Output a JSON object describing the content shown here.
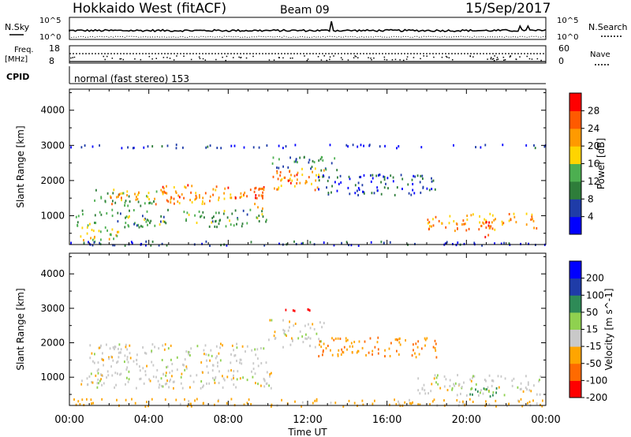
{
  "header": {
    "station": "Hokkaido West (fitACF)",
    "beam": "Beam 09",
    "date": "15/Sep/2017"
  },
  "noise_panel": {
    "left_label": "N.Sky",
    "right_label": "N.Search",
    "left_top_tick": "10^5",
    "left_bottom_tick": "10^0",
    "right_top_tick": "10^5",
    "right_bottom_tick": "10^0"
  },
  "freq_panel": {
    "left_label_1": "Freq.",
    "left_label_2": "[MHz]",
    "right_label": "Nave",
    "left_ticks": [
      "18",
      "8"
    ],
    "right_ticks": [
      "60",
      "0"
    ],
    "cpid_label": "CPID",
    "cpid_text": "normal (fast stereo) 153"
  },
  "colors": {
    "power_scale": [
      "#0000ff",
      "#1f3ca8",
      "#2e7d3a",
      "#4caf50",
      "#ffd400",
      "#ff9a00",
      "#ff5a00",
      "#ff0000"
    ],
    "velocity_scale": [
      "#ff0000",
      "#ff6a00",
      "#ffa500",
      "#c9c9c9",
      "#8fd14f",
      "#2e8b57",
      "#1f3ca8",
      "#0000ff"
    ]
  },
  "chart_data": [
    {
      "type": "heatmap",
      "name": "power",
      "xlabel": "",
      "ylabel": "Slant Range [km]",
      "x_range_hours": [
        0,
        24
      ],
      "ylim": [
        180,
        4600
      ],
      "y_ticks": [
        1000,
        2000,
        3000,
        4000
      ],
      "colorbar": {
        "label": "Power [dB]",
        "ticks": [
          "4",
          "8",
          "12",
          "16",
          "20",
          "24",
          "28"
        ],
        "range": [
          0,
          32
        ]
      },
      "echo_regions": [
        {
          "t": [
            1.2,
            4.5
          ],
          "r": [
            1300,
            1800
          ],
          "power": 14
        },
        {
          "t": [
            2.0,
            9.0
          ],
          "r": [
            1350,
            1700
          ],
          "power": 22
        },
        {
          "t": [
            4.5,
            9.8
          ],
          "r": [
            1500,
            1900
          ],
          "power": 24
        },
        {
          "t": [
            0.2,
            10.0
          ],
          "r": [
            700,
            1200
          ],
          "power": 12
        },
        {
          "t": [
            9.2,
            9.8
          ],
          "r": [
            1200,
            1900
          ],
          "power": 26
        },
        {
          "t": [
            10.2,
            12.8
          ],
          "r": [
            1700,
            2400
          ],
          "power": 22
        },
        {
          "t": [
            10.0,
            13.5
          ],
          "r": [
            2300,
            2700
          ],
          "power": 10
        },
        {
          "t": [
            12.5,
            18.5
          ],
          "r": [
            1600,
            2200
          ],
          "power": 6
        },
        {
          "t": [
            18.0,
            23.5
          ],
          "r": [
            600,
            1100
          ],
          "power": 22
        },
        {
          "t": [
            0.5,
            2.5
          ],
          "r": [
            200,
            700
          ],
          "power": 18
        },
        {
          "t": [
            0.0,
            24.0
          ],
          "r": [
            180,
            300
          ],
          "power": 6
        },
        {
          "t": [
            0.0,
            24.0
          ],
          "r": [
            2950,
            3050
          ],
          "power": 4
        },
        {
          "t": [
            10.5,
            11.5
          ],
          "r": [
            1950,
            2250
          ],
          "power": 28
        },
        {
          "t": [
            20.5,
            21.3
          ],
          "r": [
            400,
            900
          ],
          "power": 28
        }
      ]
    },
    {
      "type": "heatmap",
      "name": "velocity",
      "xlabel": "Time UT",
      "ylabel": "Slant Range [km]",
      "x_range_hours": [
        0,
        24
      ],
      "ylim": [
        180,
        4600
      ],
      "y_ticks": [
        1000,
        2000,
        3000,
        4000
      ],
      "x_ticks": [
        "00:00",
        "04:00",
        "08:00",
        "12:00",
        "16:00",
        "20:00",
        "00:00"
      ],
      "colorbar": {
        "label": "Velocity [m s^-1]",
        "ticks": [
          "200",
          "100",
          "50",
          "15",
          "-15",
          "-50",
          "-100",
          "-200"
        ],
        "range": [
          -250,
          250
        ]
      },
      "echo_regions": [
        {
          "t": [
            1.0,
            10.0
          ],
          "r": [
            1200,
            2000
          ],
          "vel": 0
        },
        {
          "t": [
            0.5,
            10.5
          ],
          "r": [
            700,
            1200
          ],
          "vel": 0
        },
        {
          "t": [
            10.0,
            12.8
          ],
          "r": [
            1900,
            2700
          ],
          "vel": 0
        },
        {
          "t": [
            12.5,
            18.5
          ],
          "r": [
            1600,
            2200
          ],
          "vel": -45
        },
        {
          "t": [
            17.5,
            23.8
          ],
          "r": [
            500,
            1100
          ],
          "vel": 0
        },
        {
          "t": [
            10.5,
            12.5
          ],
          "r": [
            2950,
            3050
          ],
          "vel": -150
        },
        {
          "t": [
            0.0,
            24.0
          ],
          "r": [
            180,
            400
          ],
          "vel": -30
        },
        {
          "t": [
            20.0,
            21.5
          ],
          "r": [
            450,
            800
          ],
          "vel": 60
        }
      ]
    }
  ]
}
